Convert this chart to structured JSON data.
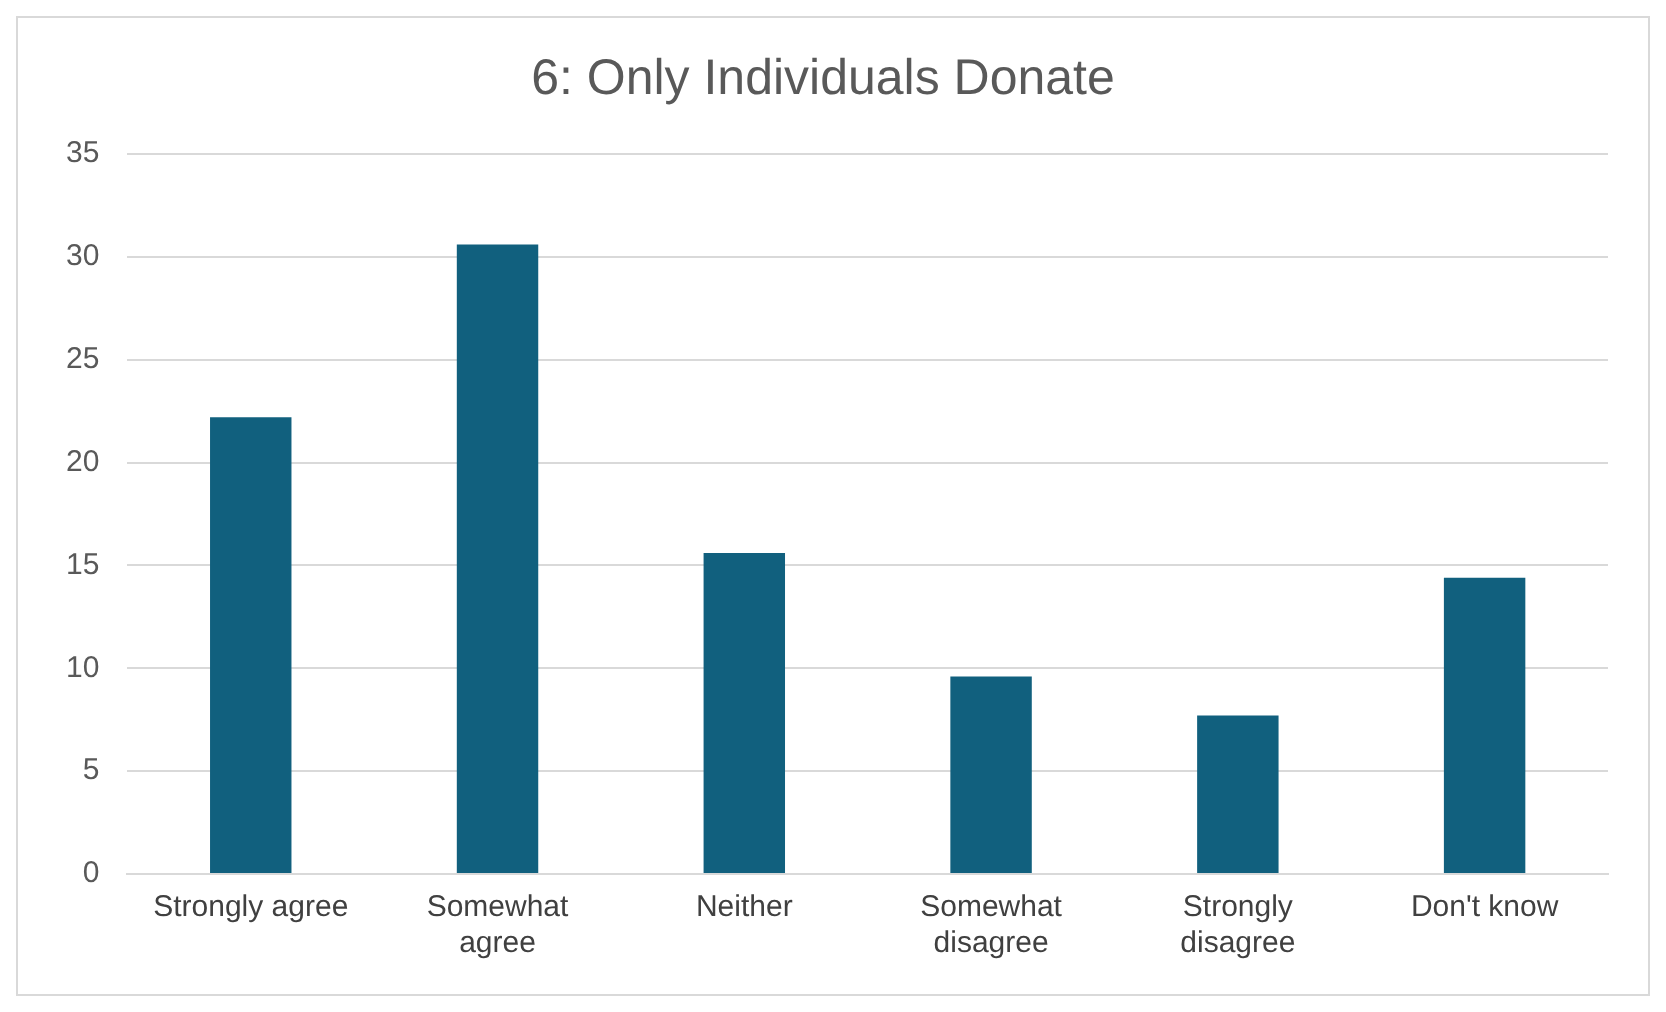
{
  "chart_data": {
    "type": "bar",
    "title": "6: Only Individuals Donate",
    "categories": [
      "Strongly agree",
      "Somewhat agree",
      "Neither",
      "Somewhat disagree",
      "Strongly disagree",
      "Don't know"
    ],
    "values": [
      22.2,
      30.6,
      15.6,
      9.6,
      7.7,
      14.4
    ],
    "color": "#11607e",
    "ylim": [
      0,
      35
    ],
    "yticks": [
      0,
      5,
      10,
      15,
      20,
      25,
      30,
      35
    ],
    "grid": "y"
  }
}
